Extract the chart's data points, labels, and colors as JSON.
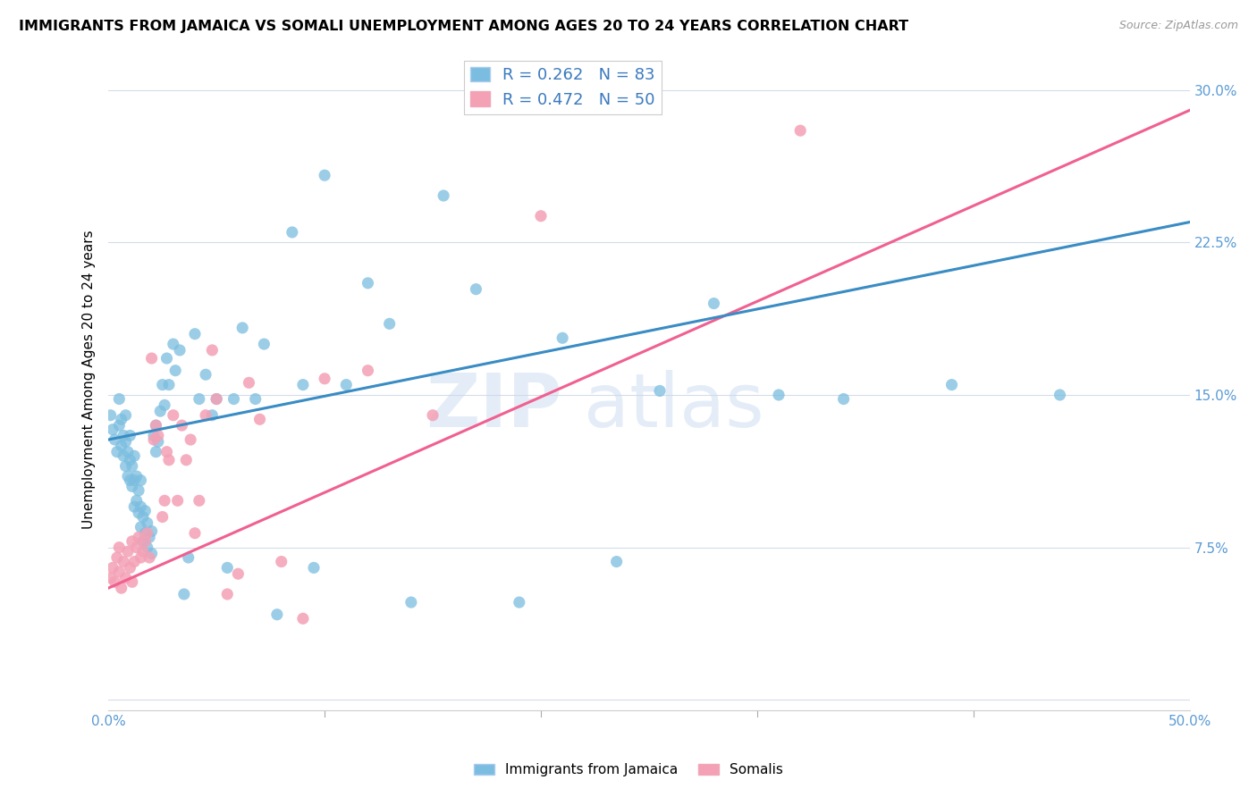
{
  "title": "IMMIGRANTS FROM JAMAICA VS SOMALI UNEMPLOYMENT AMONG AGES 20 TO 24 YEARS CORRELATION CHART",
  "source": "Source: ZipAtlas.com",
  "ylabel": "Unemployment Among Ages 20 to 24 years",
  "xlim": [
    0.0,
    0.5
  ],
  "ylim": [
    -0.005,
    0.32
  ],
  "xtick_positions": [
    0.0,
    0.1,
    0.2,
    0.3,
    0.4,
    0.5
  ],
  "xticklabels_visible": [
    "0.0%",
    "",
    "",
    "",
    "",
    "50.0%"
  ],
  "ytick_positions": [
    0.0,
    0.075,
    0.15,
    0.225,
    0.3
  ],
  "yticklabels": [
    "",
    "7.5%",
    "15.0%",
    "22.5%",
    "30.0%"
  ],
  "legend1_R": "0.262",
  "legend1_N": "83",
  "legend2_R": "0.472",
  "legend2_N": "50",
  "color_jamaica": "#7bbde0",
  "color_somali": "#f4a0b5",
  "color_jamaica_line": "#3a8cc4",
  "color_somali_line": "#f06090",
  "color_dashed_line": "#b8c8d8",
  "watermark_zip": "ZIP",
  "watermark_atlas": "atlas",
  "jamaica_line_x0": 0.0,
  "jamaica_line_y0": 0.128,
  "jamaica_line_x1": 0.5,
  "jamaica_line_y1": 0.235,
  "somali_line_x0": 0.0,
  "somali_line_y0": 0.055,
  "somali_line_x1": 0.5,
  "somali_line_y1": 0.29,
  "dashed_line_x0": 0.0,
  "dashed_line_y0": 0.128,
  "dashed_line_x1": 0.5,
  "dashed_line_y1": 0.235,
  "jamaica_x": [
    0.001,
    0.002,
    0.003,
    0.004,
    0.005,
    0.005,
    0.006,
    0.006,
    0.007,
    0.007,
    0.008,
    0.008,
    0.008,
    0.009,
    0.009,
    0.01,
    0.01,
    0.01,
    0.011,
    0.011,
    0.012,
    0.012,
    0.012,
    0.013,
    0.013,
    0.014,
    0.014,
    0.015,
    0.015,
    0.015,
    0.016,
    0.016,
    0.017,
    0.017,
    0.018,
    0.018,
    0.019,
    0.02,
    0.02,
    0.021,
    0.022,
    0.022,
    0.023,
    0.024,
    0.025,
    0.026,
    0.027,
    0.028,
    0.03,
    0.031,
    0.033,
    0.035,
    0.037,
    0.04,
    0.042,
    0.045,
    0.048,
    0.05,
    0.055,
    0.058,
    0.062,
    0.068,
    0.072,
    0.078,
    0.085,
    0.09,
    0.095,
    0.1,
    0.11,
    0.12,
    0.13,
    0.14,
    0.155,
    0.17,
    0.19,
    0.21,
    0.235,
    0.255,
    0.28,
    0.31,
    0.34,
    0.39,
    0.44
  ],
  "jamaica_y": [
    0.14,
    0.133,
    0.128,
    0.122,
    0.135,
    0.148,
    0.125,
    0.138,
    0.12,
    0.13,
    0.115,
    0.127,
    0.14,
    0.11,
    0.122,
    0.108,
    0.118,
    0.13,
    0.105,
    0.115,
    0.095,
    0.108,
    0.12,
    0.098,
    0.11,
    0.092,
    0.103,
    0.085,
    0.095,
    0.108,
    0.078,
    0.09,
    0.082,
    0.093,
    0.075,
    0.087,
    0.08,
    0.072,
    0.083,
    0.13,
    0.122,
    0.135,
    0.127,
    0.142,
    0.155,
    0.145,
    0.168,
    0.155,
    0.175,
    0.162,
    0.172,
    0.052,
    0.07,
    0.18,
    0.148,
    0.16,
    0.14,
    0.148,
    0.065,
    0.148,
    0.183,
    0.148,
    0.175,
    0.042,
    0.23,
    0.155,
    0.065,
    0.258,
    0.155,
    0.205,
    0.185,
    0.048,
    0.248,
    0.202,
    0.048,
    0.178,
    0.068,
    0.152,
    0.195,
    0.15,
    0.148,
    0.155,
    0.15
  ],
  "somali_x": [
    0.001,
    0.002,
    0.003,
    0.004,
    0.005,
    0.005,
    0.006,
    0.007,
    0.008,
    0.009,
    0.01,
    0.011,
    0.011,
    0.012,
    0.013,
    0.014,
    0.015,
    0.016,
    0.017,
    0.018,
    0.019,
    0.02,
    0.021,
    0.022,
    0.023,
    0.025,
    0.026,
    0.027,
    0.028,
    0.03,
    0.032,
    0.034,
    0.036,
    0.038,
    0.04,
    0.042,
    0.045,
    0.048,
    0.05,
    0.055,
    0.06,
    0.065,
    0.07,
    0.08,
    0.09,
    0.1,
    0.12,
    0.15,
    0.2,
    0.32
  ],
  "somali_y": [
    0.06,
    0.065,
    0.058,
    0.07,
    0.063,
    0.075,
    0.055,
    0.068,
    0.06,
    0.073,
    0.065,
    0.058,
    0.078,
    0.068,
    0.075,
    0.08,
    0.07,
    0.073,
    0.078,
    0.082,
    0.07,
    0.168,
    0.128,
    0.135,
    0.13,
    0.09,
    0.098,
    0.122,
    0.118,
    0.14,
    0.098,
    0.135,
    0.118,
    0.128,
    0.082,
    0.098,
    0.14,
    0.172,
    0.148,
    0.052,
    0.062,
    0.156,
    0.138,
    0.068,
    0.04,
    0.158,
    0.162,
    0.14,
    0.238,
    0.28
  ]
}
